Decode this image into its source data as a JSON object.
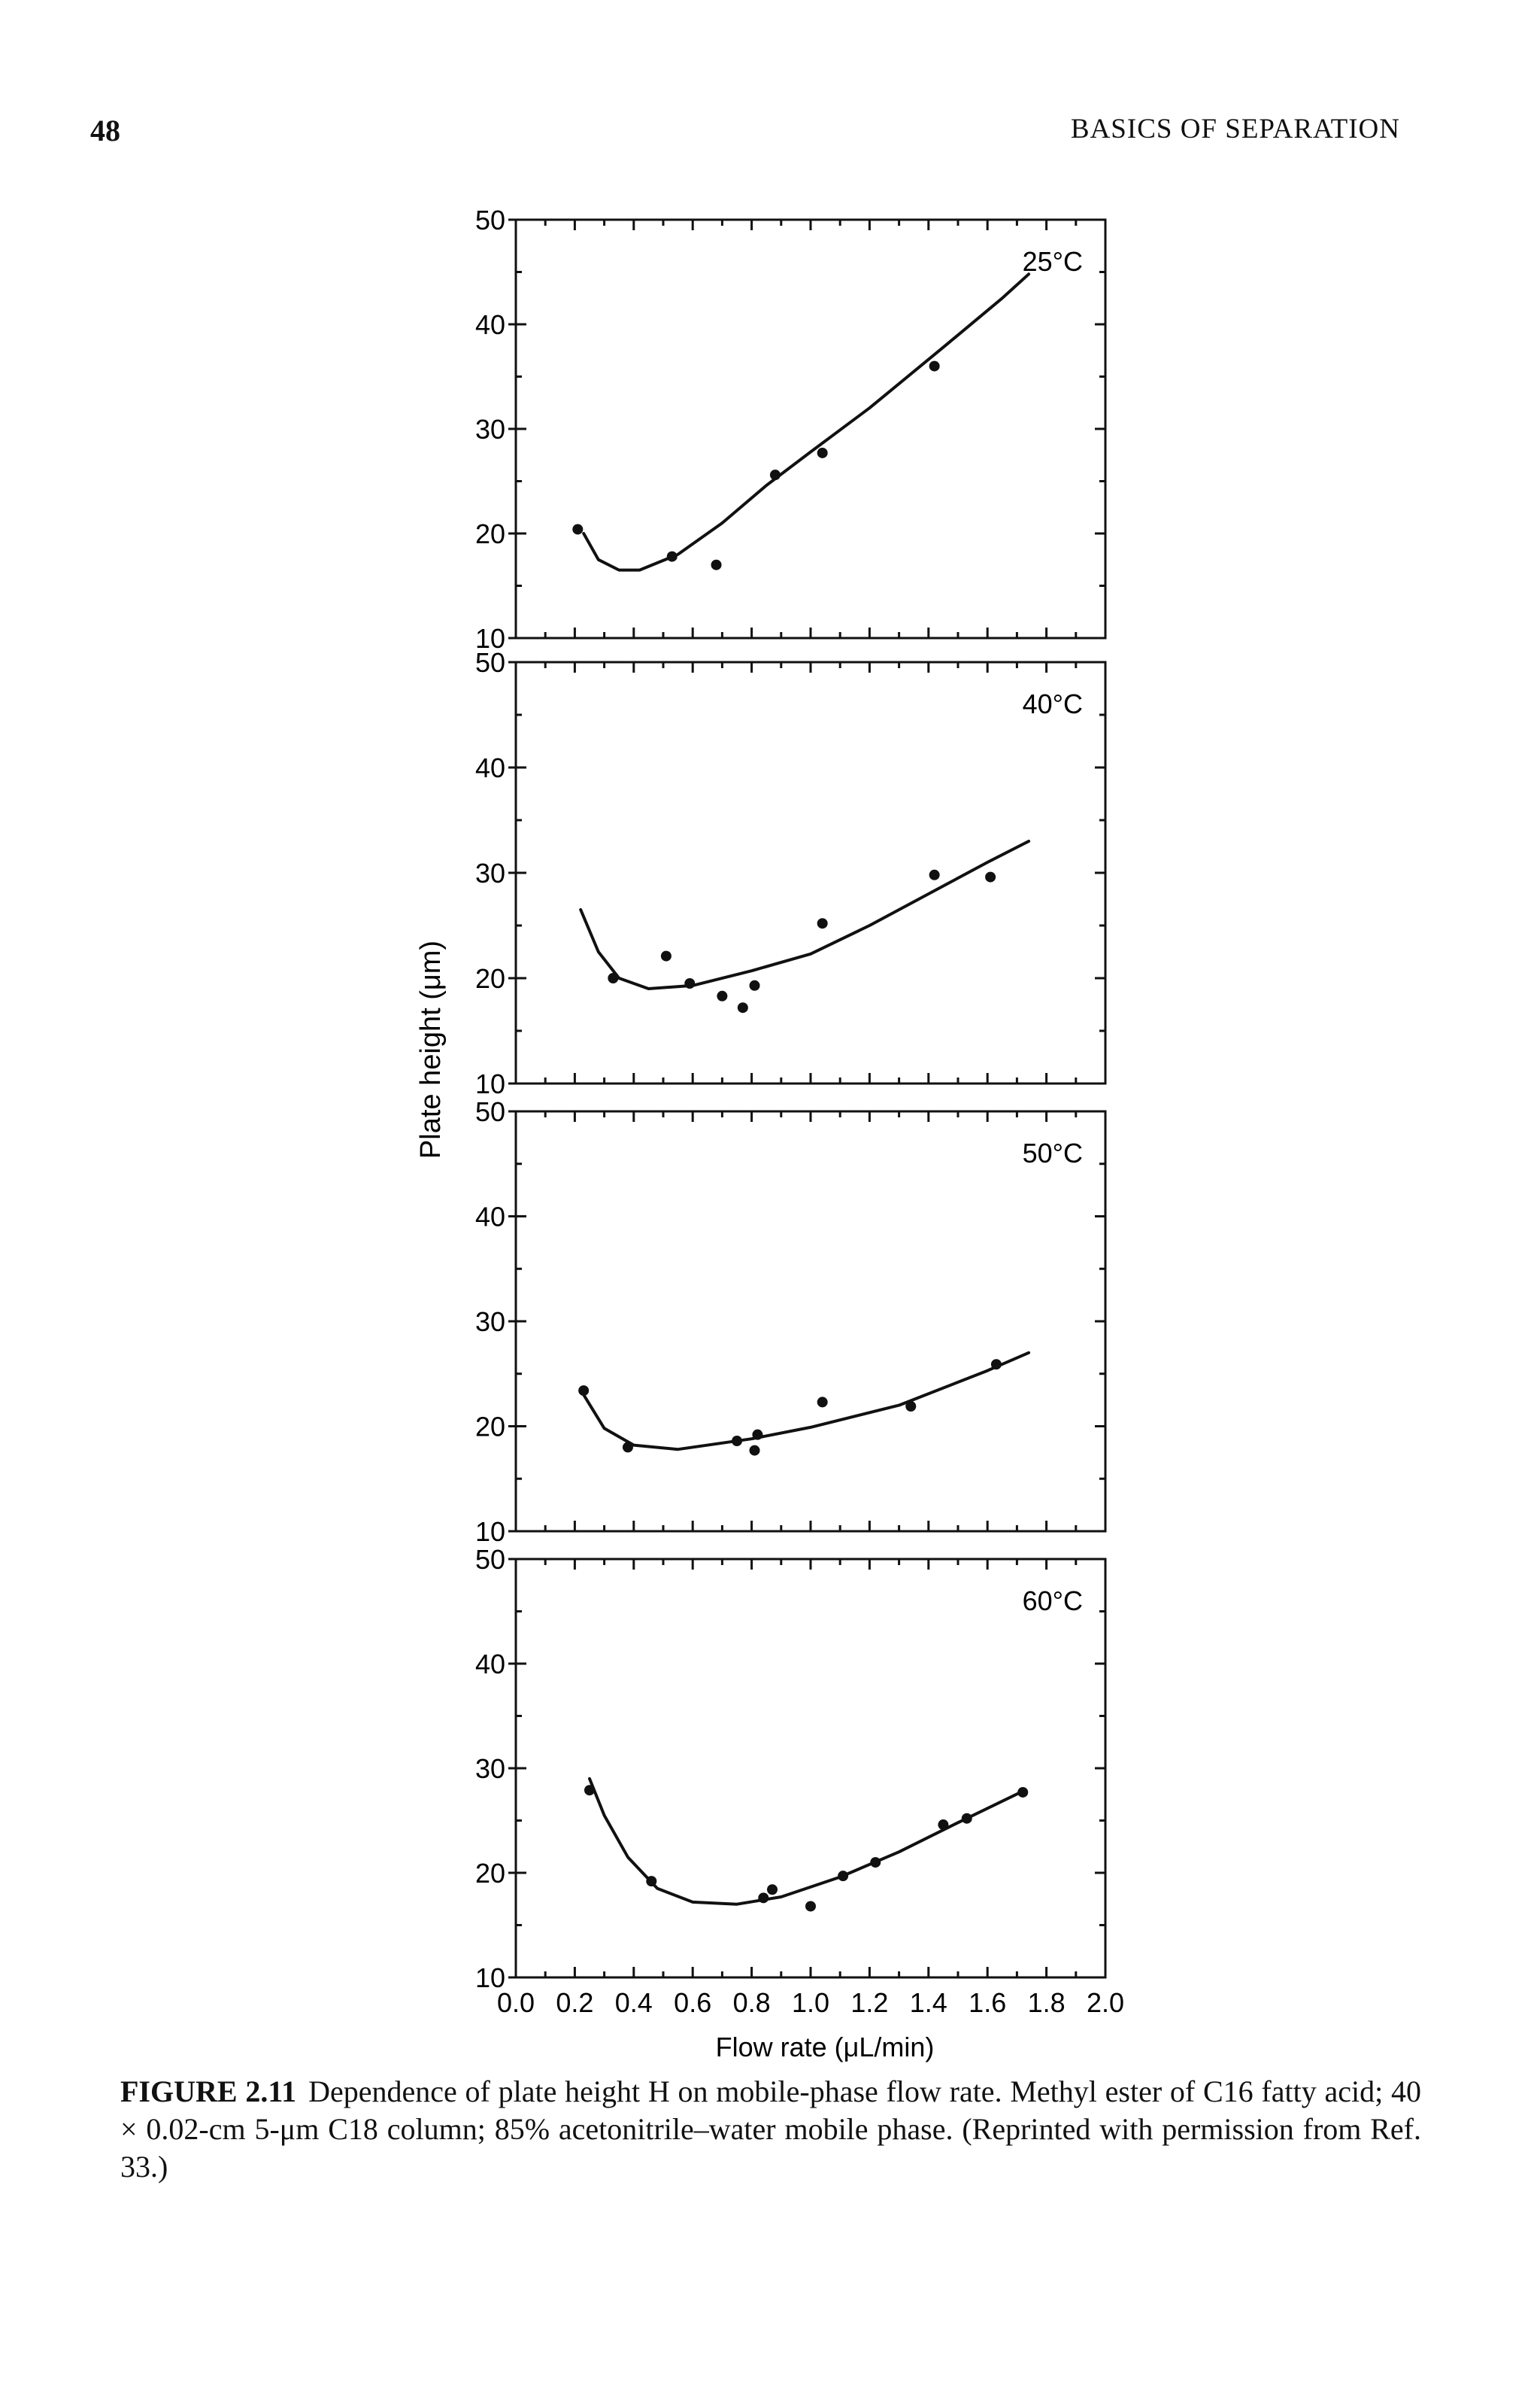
{
  "page": {
    "number": "48",
    "running_head": "BASICS OF SEPARATION"
  },
  "caption": {
    "label": "FIGURE 2.11",
    "text": "Dependence of plate height H on mobile-phase flow rate. Methyl ester of C16 fatty acid; 40 × 0.02-cm 5-μm C18 column; 85% acetonitrile–water mobile phase. (Reprinted with permission from Ref. 33.)"
  },
  "chart_data": [
    {
      "type": "scatter",
      "panel_label": "25°C",
      "ylabel": "Plate height (μm)",
      "xlabel": "Flow rate (μL/min)",
      "xlim": [
        0.0,
        2.0
      ],
      "ylim": [
        10,
        50
      ],
      "yticks": [
        "10",
        "20",
        "30",
        "40",
        "50"
      ],
      "points": [
        [
          0.21,
          20.4
        ],
        [
          0.53,
          17.8
        ],
        [
          0.68,
          17.0
        ],
        [
          0.88,
          25.6
        ],
        [
          1.04,
          27.7
        ],
        [
          1.42,
          36.0
        ]
      ],
      "curve": [
        [
          0.23,
          20.0
        ],
        [
          0.28,
          17.5
        ],
        [
          0.35,
          16.5
        ],
        [
          0.42,
          16.5
        ],
        [
          0.55,
          18.0
        ],
        [
          0.7,
          21.0
        ],
        [
          0.85,
          24.6
        ],
        [
          1.0,
          27.8
        ],
        [
          1.2,
          32.0
        ],
        [
          1.45,
          37.8
        ],
        [
          1.65,
          42.5
        ],
        [
          1.74,
          44.8
        ]
      ]
    },
    {
      "type": "scatter",
      "panel_label": "40°C",
      "ylabel": "Plate height (μm)",
      "xlabel": "Flow rate (μL/min)",
      "xlim": [
        0.0,
        2.0
      ],
      "ylim": [
        10,
        50
      ],
      "yticks": [
        "10",
        "20",
        "30",
        "40",
        "50"
      ],
      "points": [
        [
          0.33,
          20.0
        ],
        [
          0.51,
          22.1
        ],
        [
          0.59,
          19.5
        ],
        [
          0.7,
          18.3
        ],
        [
          0.77,
          17.2
        ],
        [
          0.81,
          19.3
        ],
        [
          1.04,
          25.2
        ],
        [
          1.42,
          29.8
        ],
        [
          1.61,
          29.6
        ]
      ],
      "curve": [
        [
          0.22,
          26.5
        ],
        [
          0.28,
          22.5
        ],
        [
          0.35,
          20.0
        ],
        [
          0.45,
          19.0
        ],
        [
          0.6,
          19.3
        ],
        [
          0.8,
          20.7
        ],
        [
          1.0,
          22.3
        ],
        [
          1.2,
          25.0
        ],
        [
          1.4,
          28.0
        ],
        [
          1.6,
          31.0
        ],
        [
          1.74,
          33.0
        ]
      ]
    },
    {
      "type": "scatter",
      "panel_label": "50°C",
      "ylabel": "Plate height (μm)",
      "xlabel": "Flow rate (μL/min)",
      "xlim": [
        0.0,
        2.0
      ],
      "ylim": [
        10,
        50
      ],
      "yticks": [
        "10",
        "20",
        "30",
        "40",
        "50"
      ],
      "points": [
        [
          0.23,
          23.4
        ],
        [
          0.38,
          18.0
        ],
        [
          0.75,
          18.6
        ],
        [
          0.81,
          17.7
        ],
        [
          0.82,
          19.2
        ],
        [
          1.04,
          22.3
        ],
        [
          1.34,
          21.9
        ],
        [
          1.63,
          25.9
        ]
      ],
      "curve": [
        [
          0.23,
          23.0
        ],
        [
          0.3,
          19.8
        ],
        [
          0.4,
          18.2
        ],
        [
          0.55,
          17.8
        ],
        [
          0.8,
          18.8
        ],
        [
          1.0,
          19.9
        ],
        [
          1.3,
          22.0
        ],
        [
          1.6,
          25.3
        ],
        [
          1.74,
          27.0
        ]
      ]
    },
    {
      "type": "scatter",
      "panel_label": "60°C",
      "ylabel": "Plate height (μm)",
      "xlabel": "Flow rate (μL/min)",
      "xlim": [
        0.0,
        2.0
      ],
      "ylim": [
        10,
        50
      ],
      "yticks": [
        "10",
        "20",
        "30",
        "40",
        "50"
      ],
      "xticks": [
        "0.0",
        "0.2",
        "0.4",
        "0.6",
        "0.8",
        "1.0",
        "1.2",
        "1.4",
        "1.6",
        "1.8",
        "2.0"
      ],
      "points": [
        [
          0.25,
          27.9
        ],
        [
          0.46,
          19.2
        ],
        [
          0.84,
          17.6
        ],
        [
          0.87,
          18.4
        ],
        [
          1.0,
          16.8
        ],
        [
          1.11,
          19.7
        ],
        [
          1.22,
          21.0
        ],
        [
          1.45,
          24.6
        ],
        [
          1.53,
          25.2
        ],
        [
          1.72,
          27.7
        ]
      ],
      "curve": [
        [
          0.25,
          29.0
        ],
        [
          0.3,
          25.5
        ],
        [
          0.38,
          21.5
        ],
        [
          0.48,
          18.5
        ],
        [
          0.6,
          17.2
        ],
        [
          0.75,
          17.0
        ],
        [
          0.9,
          17.7
        ],
        [
          1.1,
          19.6
        ],
        [
          1.3,
          22.0
        ],
        [
          1.5,
          24.8
        ],
        [
          1.72,
          27.8
        ]
      ]
    }
  ]
}
